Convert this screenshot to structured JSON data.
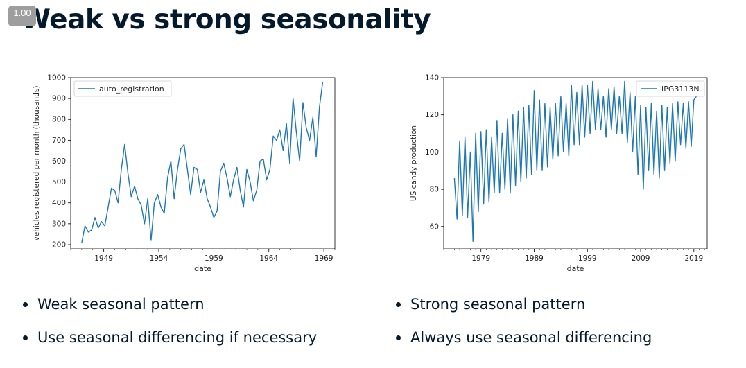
{
  "slide": {
    "counter": "1.00",
    "title": "Weak vs strong seasonality",
    "left_bullets": [
      "Weak seasonal pattern",
      "Use seasonal differencing if necessary"
    ],
    "right_bullets": [
      "Strong seasonal pattern",
      "Always use seasonal differencing"
    ]
  },
  "colors": {
    "series": "#1f77b4",
    "text": "#05192d"
  },
  "chart_data": [
    {
      "type": "line",
      "xlabel": "date",
      "ylabel": "vehicles registered per month (thousands)",
      "xlim": [
        1946.0,
        1970.0
      ],
      "ylim": [
        180,
        1000
      ],
      "xticks": [
        1949,
        1954,
        1959,
        1964,
        1969
      ],
      "yticks": [
        200,
        300,
        400,
        500,
        600,
        700,
        800,
        900,
        1000
      ],
      "legend_position": "top-left",
      "grid": false,
      "series": [
        {
          "name": "auto_registration",
          "x": [
            1947.0,
            1947.3,
            1947.6,
            1947.9,
            1948.2,
            1948.5,
            1948.8,
            1949.1,
            1949.4,
            1949.7,
            1950.0,
            1950.3,
            1950.6,
            1950.9,
            1951.2,
            1951.5,
            1951.8,
            1952.1,
            1952.4,
            1952.7,
            1953.0,
            1953.3,
            1953.6,
            1953.9,
            1954.2,
            1954.5,
            1954.8,
            1955.1,
            1955.4,
            1955.7,
            1956.0,
            1956.3,
            1956.6,
            1956.9,
            1957.2,
            1957.5,
            1957.8,
            1958.1,
            1958.4,
            1958.7,
            1959.0,
            1959.3,
            1959.6,
            1959.9,
            1960.2,
            1960.5,
            1960.8,
            1961.1,
            1961.4,
            1961.7,
            1962.0,
            1962.3,
            1962.6,
            1962.9,
            1963.2,
            1963.5,
            1963.8,
            1964.1,
            1964.4,
            1964.7,
            1965.0,
            1965.3,
            1965.6,
            1965.9,
            1966.2,
            1966.5,
            1966.8,
            1967.1,
            1967.4,
            1967.7,
            1968.0,
            1968.3,
            1968.6,
            1968.9
          ],
          "y": [
            210,
            290,
            260,
            270,
            330,
            280,
            310,
            290,
            380,
            470,
            460,
            400,
            560,
            680,
            540,
            430,
            480,
            420,
            390,
            300,
            420,
            220,
            400,
            440,
            380,
            350,
            520,
            600,
            420,
            560,
            660,
            680,
            560,
            440,
            570,
            560,
            450,
            510,
            420,
            380,
            330,
            360,
            550,
            590,
            520,
            430,
            510,
            570,
            460,
            380,
            560,
            500,
            410,
            460,
            600,
            610,
            510,
            560,
            720,
            700,
            750,
            650,
            780,
            590,
            900,
            740,
            600,
            880,
            760,
            700,
            810,
            620,
            860,
            980
          ]
        }
      ]
    },
    {
      "type": "line",
      "xlabel": "date",
      "ylabel": "US candy production",
      "xlim": [
        1972.0,
        2021.5
      ],
      "ylim": [
        48,
        140
      ],
      "xticks": [
        1979,
        1989,
        1999,
        2009,
        2019
      ],
      "yticks": [
        60,
        80,
        100,
        120,
        140
      ],
      "legend_position": "top-right",
      "grid": false,
      "series": [
        {
          "name": "IPG3113N",
          "x": [
            1974.0,
            1974.5,
            1975.0,
            1975.5,
            1976.0,
            1976.5,
            1977.0,
            1977.5,
            1978.0,
            1978.5,
            1979.0,
            1979.5,
            1980.0,
            1980.5,
            1981.0,
            1981.5,
            1982.0,
            1982.5,
            1983.0,
            1983.5,
            1984.0,
            1984.5,
            1985.0,
            1985.5,
            1986.0,
            1986.5,
            1987.0,
            1987.5,
            1988.0,
            1988.5,
            1989.0,
            1989.5,
            1990.0,
            1990.5,
            1991.0,
            1991.5,
            1992.0,
            1992.5,
            1993.0,
            1993.5,
            1994.0,
            1994.5,
            1995.0,
            1995.5,
            1996.0,
            1996.5,
            1997.0,
            1997.5,
            1998.0,
            1998.5,
            1999.0,
            1999.5,
            2000.0,
            2000.5,
            2001.0,
            2001.5,
            2002.0,
            2002.5,
            2003.0,
            2003.5,
            2004.0,
            2004.5,
            2005.0,
            2005.5,
            2006.0,
            2006.5,
            2007.0,
            2007.5,
            2008.0,
            2008.5,
            2009.0,
            2009.5,
            2010.0,
            2010.5,
            2011.0,
            2011.5,
            2012.0,
            2012.5,
            2013.0,
            2013.5,
            2014.0,
            2014.5,
            2015.0,
            2015.5,
            2016.0,
            2016.5,
            2017.0,
            2017.5,
            2018.0,
            2018.5,
            2019.0,
            2019.5
          ],
          "y": [
            86,
            64,
            106,
            66,
            108,
            65,
            100,
            52,
            110,
            68,
            111,
            72,
            112,
            73,
            108,
            78,
            117,
            78,
            110,
            80,
            118,
            78,
            120,
            82,
            122,
            84,
            124,
            86,
            125,
            88,
            133,
            90,
            128,
            90,
            126,
            92,
            124,
            96,
            126,
            98,
            130,
            100,
            126,
            98,
            136,
            104,
            132,
            104,
            136,
            108,
            136,
            110,
            138,
            112,
            134,
            112,
            130,
            108,
            134,
            112,
            135,
            110,
            130,
            110,
            138,
            105,
            132,
            100,
            130,
            88,
            125,
            80,
            124,
            90,
            126,
            88,
            122,
            86,
            125,
            90,
            124,
            94,
            126,
            95,
            127,
            104,
            126,
            102,
            127,
            103,
            128,
            130
          ]
        }
      ]
    }
  ]
}
